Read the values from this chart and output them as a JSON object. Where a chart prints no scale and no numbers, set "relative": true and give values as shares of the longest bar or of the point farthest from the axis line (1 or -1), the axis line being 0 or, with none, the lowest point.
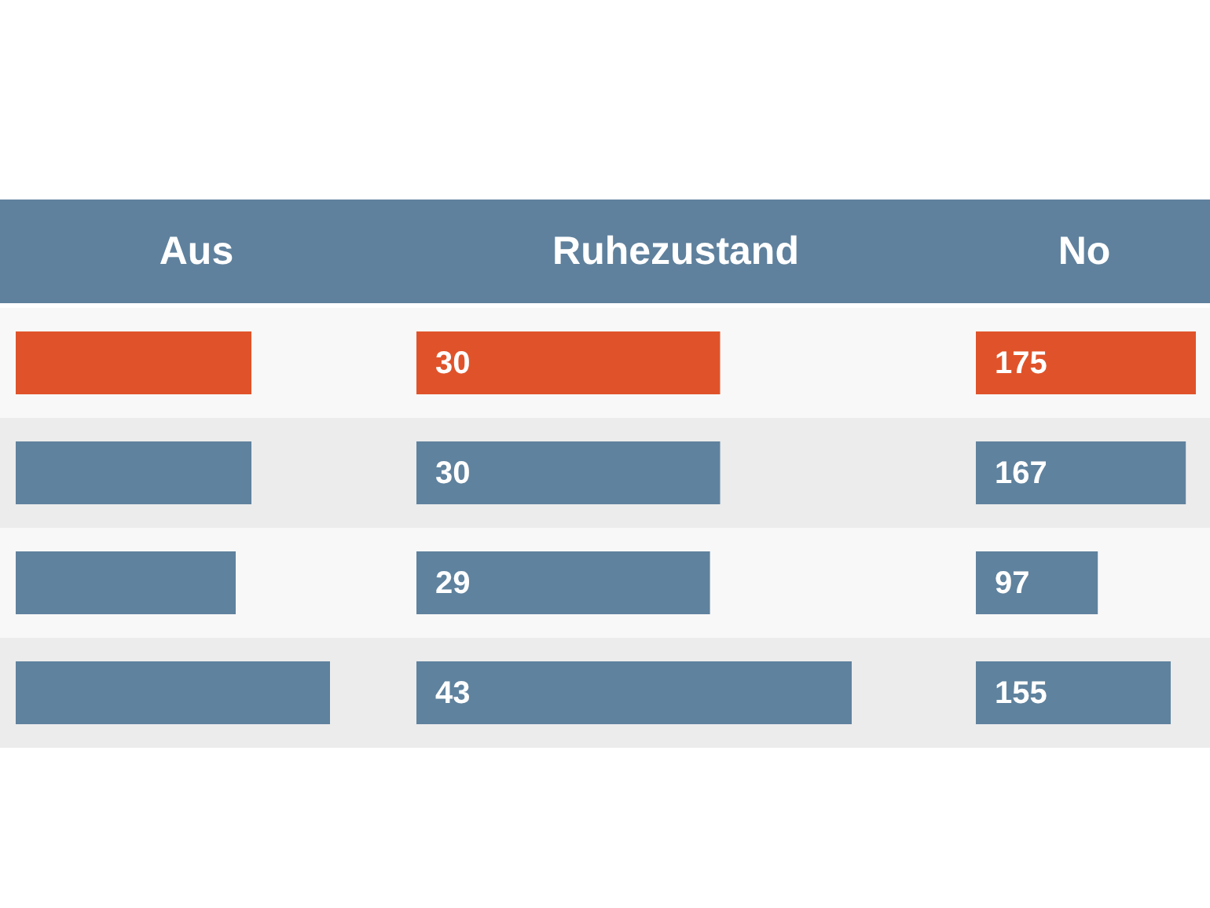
{
  "chart_data": [
    {
      "type": "bar",
      "orientation": "horizontal",
      "title": "Aus",
      "categories": [
        null,
        null,
        null,
        null
      ],
      "values": [
        0.75,
        0.75,
        0.7,
        1
      ],
      "colors": [
        "#e0532a",
        "#5f829e",
        "#5f829e",
        "#5f829e"
      ],
      "relative": true,
      "tick_labels": false
    },
    {
      "type": "bar",
      "orientation": "horizontal",
      "title": "Ruhezustand",
      "categories": [
        null,
        null,
        null,
        null
      ],
      "values": [
        30,
        30,
        29,
        43
      ],
      "colors": [
        "#e0532a",
        "#5f829e",
        "#5f829e",
        "#5f829e"
      ],
      "data_labels": true,
      "tick_labels": false
    },
    {
      "type": "bar",
      "orientation": "horizontal",
      "title": "No",
      "categories": [
        null,
        null,
        null,
        null
      ],
      "values": [
        175,
        167,
        97,
        155
      ],
      "colors": [
        "#e0532a",
        "#5f829e",
        "#5f829e",
        "#5f829e"
      ],
      "data_labels": true,
      "tick_labels": false
    }
  ]
}
